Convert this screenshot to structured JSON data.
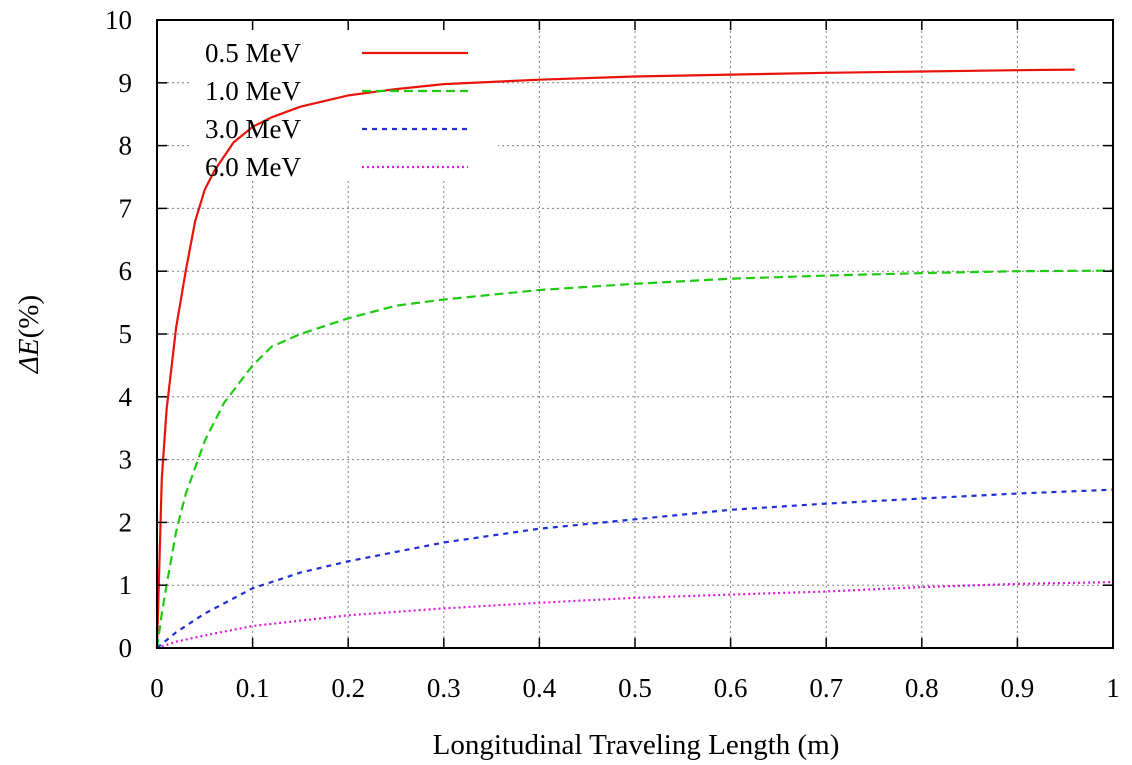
{
  "chart_data": {
    "type": "line",
    "title": "",
    "xlabel": "Longitudinal Traveling Length (m)",
    "ylabel_prefix": "Δ",
    "ylabel_var": "E",
    "ylabel_suffix": "(%)",
    "xlim": [
      0,
      1
    ],
    "ylim": [
      0,
      10
    ],
    "x_ticks": [
      "0",
      "0.1",
      "0.2",
      "0.3",
      "0.4",
      "0.5",
      "0.6",
      "0.7",
      "0.8",
      "0.9",
      "1"
    ],
    "y_ticks": [
      "0",
      "1",
      "2",
      "3",
      "4",
      "5",
      "6",
      "7",
      "8",
      "9",
      "10"
    ],
    "grid": true,
    "legend_position": "top-left",
    "series": [
      {
        "name": "0.5 MeV",
        "color": "#e8140c",
        "dash": "solid",
        "x": [
          0,
          0.005,
          0.01,
          0.02,
          0.03,
          0.04,
          0.05,
          0.06,
          0.08,
          0.1,
          0.12,
          0.15,
          0.2,
          0.25,
          0.3,
          0.4,
          0.5,
          0.6,
          0.7,
          0.8,
          0.9,
          0.96
        ],
        "y": [
          0,
          2.7,
          3.8,
          5.1,
          6.0,
          6.8,
          7.3,
          7.6,
          8.05,
          8.3,
          8.45,
          8.62,
          8.8,
          8.9,
          8.98,
          9.05,
          9.1,
          9.13,
          9.16,
          9.18,
          9.2,
          9.21
        ]
      },
      {
        "name": "1.0 MeV",
        "color": "#1ecb10",
        "dash": "dashed",
        "x": [
          0,
          0.005,
          0.01,
          0.02,
          0.03,
          0.05,
          0.07,
          0.1,
          0.12,
          0.15,
          0.2,
          0.25,
          0.3,
          0.4,
          0.5,
          0.6,
          0.7,
          0.8,
          0.9,
          1.0
        ],
        "y": [
          0,
          0.55,
          1.0,
          1.85,
          2.45,
          3.3,
          3.9,
          4.5,
          4.8,
          5.0,
          5.25,
          5.45,
          5.55,
          5.7,
          5.8,
          5.88,
          5.93,
          5.97,
          6.0,
          6.01
        ]
      },
      {
        "name": "3.0 MeV",
        "color": "#1f2fd6",
        "dash": "short-dash",
        "x": [
          0,
          0.02,
          0.05,
          0.1,
          0.15,
          0.2,
          0.3,
          0.4,
          0.5,
          0.6,
          0.7,
          0.8,
          0.9,
          1.0
        ],
        "y": [
          0,
          0.25,
          0.55,
          0.95,
          1.2,
          1.38,
          1.68,
          1.9,
          2.05,
          2.2,
          2.3,
          2.38,
          2.46,
          2.52
        ]
      },
      {
        "name": "6.0 MeV",
        "color": "#e018e0",
        "dash": "dotted",
        "x": [
          0,
          0.02,
          0.05,
          0.1,
          0.2,
          0.3,
          0.4,
          0.5,
          0.6,
          0.7,
          0.8,
          0.9,
          1.0
        ],
        "y": [
          0,
          0.1,
          0.2,
          0.35,
          0.52,
          0.63,
          0.72,
          0.8,
          0.85,
          0.9,
          0.97,
          1.02,
          1.05
        ]
      }
    ]
  }
}
